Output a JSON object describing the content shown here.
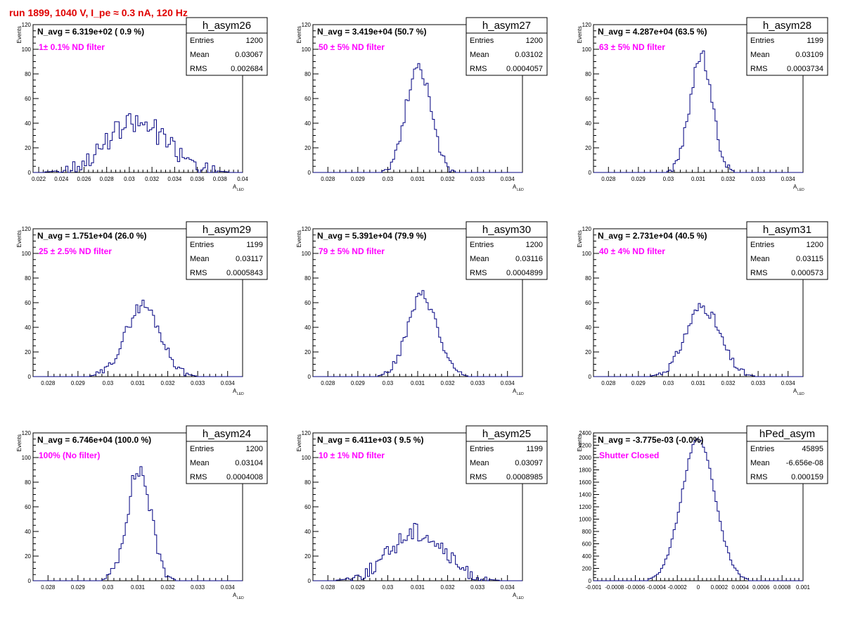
{
  "title": "run 1899,  1040 V, I_pe ≈ 0.3 nA, 120 Hz",
  "colors": {
    "title": "#e00000",
    "histogram": "#000080",
    "annotation": "#ff00ff",
    "axes": "#000000"
  },
  "chart_data": [
    {
      "type": "histogram",
      "name": "h_asym26",
      "navg": "N_avg = 6.319e+02 ( 0.9 %)",
      "filter": "1± 0.1% ND filter",
      "stats": [
        [
          "Entries",
          "1200"
        ],
        [
          "Mean",
          "0.03067"
        ],
        [
          "RMS",
          "0.002684"
        ]
      ],
      "xlabel": "A",
      "xlabel_sub": "LED",
      "ylabel": "Events",
      "xlim": [
        0.0215,
        0.04
      ],
      "ylim": [
        0,
        120
      ],
      "xticks": [
        "0.022",
        "0.024",
        "0.026",
        "0.028",
        "0.03",
        "0.032",
        "0.034",
        "0.036",
        "0.038",
        "0.04"
      ],
      "yticks": [
        "0",
        "20",
        "40",
        "60",
        "80",
        "100",
        "120"
      ],
      "mean": 0.03067,
      "sigma": 0.0027,
      "peak": 40,
      "noise": 10,
      "nbins": 90,
      "seed": 26
    },
    {
      "type": "histogram",
      "name": "h_asym27",
      "navg": "N_avg = 3.419e+04 (50.7 %)",
      "filter": "50 ± 5% ND filter",
      "stats": [
        [
          "Entries",
          "1200"
        ],
        [
          "Mean",
          "0.03102"
        ],
        [
          "RMS",
          "0.0004057"
        ]
      ],
      "xlabel": "A",
      "xlabel_sub": "LED",
      "ylabel": "Events",
      "xlim": [
        0.0275,
        0.0345
      ],
      "ylim": [
        0,
        120
      ],
      "xticks": [
        "0.028",
        "0.029",
        "0.03",
        "0.031",
        "0.032",
        "0.033",
        "0.034"
      ],
      "yticks": [
        "0",
        "20",
        "40",
        "60",
        "80",
        "100",
        "120"
      ],
      "mean": 0.03102,
      "sigma": 0.00041,
      "peak": 88,
      "noise": 6,
      "nbins": 100,
      "seed": 27
    },
    {
      "type": "histogram",
      "name": "h_asym28",
      "navg": "N_avg = 4.287e+04 (63.5 %)",
      "filter": "63 ± 5% ND filter",
      "stats": [
        [
          "Entries",
          "1199"
        ],
        [
          "Mean",
          "0.03109"
        ],
        [
          "RMS",
          "0.0003734"
        ]
      ],
      "xlabel": "A",
      "xlabel_sub": "LED",
      "ylabel": "Events",
      "xlim": [
        0.0275,
        0.0345
      ],
      "ylim": [
        0,
        120
      ],
      "xticks": [
        "0.028",
        "0.029",
        "0.03",
        "0.031",
        "0.032",
        "0.033",
        "0.034"
      ],
      "yticks": [
        "0",
        "20",
        "40",
        "60",
        "80",
        "100",
        "120"
      ],
      "mean": 0.03109,
      "sigma": 0.00037,
      "peak": 95,
      "noise": 6,
      "nbins": 100,
      "seed": 28
    },
    {
      "type": "histogram",
      "name": "h_asym29",
      "navg": "N_avg = 1.751e+04 (26.0 %)",
      "filter": "25 ± 2.5% ND filter",
      "stats": [
        [
          "Entries",
          "1199"
        ],
        [
          "Mean",
          "0.03117"
        ],
        [
          "RMS",
          "0.0005843"
        ]
      ],
      "xlabel": "A",
      "xlabel_sub": "LED",
      "ylabel": "Events",
      "xlim": [
        0.0275,
        0.0345
      ],
      "ylim": [
        0,
        120
      ],
      "xticks": [
        "0.028",
        "0.029",
        "0.03",
        "0.031",
        "0.032",
        "0.033",
        "0.034"
      ],
      "yticks": [
        "0",
        "20",
        "40",
        "60",
        "80",
        "100",
        "120"
      ],
      "mean": 0.03117,
      "sigma": 0.00058,
      "peak": 58,
      "noise": 5,
      "nbins": 100,
      "seed": 29
    },
    {
      "type": "histogram",
      "name": "h_asym30",
      "navg": "N_avg = 5.391e+04 (79.9 %)",
      "filter": "79 ± 5% ND filter",
      "stats": [
        [
          "Entries",
          "1200"
        ],
        [
          "Mean",
          "0.03116"
        ],
        [
          "RMS",
          "0.0004899"
        ]
      ],
      "xlabel": "A",
      "xlabel_sub": "LED",
      "ylabel": "Events",
      "xlim": [
        0.0275,
        0.0345
      ],
      "ylim": [
        0,
        120
      ],
      "xticks": [
        "0.028",
        "0.029",
        "0.03",
        "0.031",
        "0.032",
        "0.033",
        "0.034"
      ],
      "yticks": [
        "0",
        "20",
        "40",
        "60",
        "80",
        "100",
        "120"
      ],
      "mean": 0.03116,
      "sigma": 0.00049,
      "peak": 66,
      "noise": 5,
      "nbins": 100,
      "seed": 30
    },
    {
      "type": "histogram",
      "name": "h_asym31",
      "navg": "N_avg = 2.731e+04 (40.5 %)",
      "filter": "40 ± 4% ND filter",
      "stats": [
        [
          "Entries",
          "1200"
        ],
        [
          "Mean",
          "0.03115"
        ],
        [
          "RMS",
          "0.000573"
        ]
      ],
      "xlabel": "A",
      "xlabel_sub": "LED",
      "ylabel": "Events",
      "xlim": [
        0.0275,
        0.0345
      ],
      "ylim": [
        0,
        120
      ],
      "xticks": [
        "0.028",
        "0.029",
        "0.03",
        "0.031",
        "0.032",
        "0.033",
        "0.034"
      ],
      "yticks": [
        "0",
        "20",
        "40",
        "60",
        "80",
        "100",
        "120"
      ],
      "mean": 0.03115,
      "sigma": 0.00057,
      "peak": 57,
      "noise": 5,
      "nbins": 100,
      "seed": 31
    },
    {
      "type": "histogram",
      "name": "h_asym24",
      "navg": "N_avg = 6.746e+04 (100.0 %)",
      "filter": "100% (No filter)",
      "stats": [
        [
          "Entries",
          "1200"
        ],
        [
          "Mean",
          "0.03104"
        ],
        [
          "RMS",
          "0.0004008"
        ]
      ],
      "xlabel": "A",
      "xlabel_sub": "LED",
      "ylabel": "Events",
      "xlim": [
        0.0275,
        0.0345
      ],
      "ylim": [
        0,
        120
      ],
      "xticks": [
        "0.028",
        "0.029",
        "0.03",
        "0.031",
        "0.032",
        "0.033",
        "0.034"
      ],
      "yticks": [
        "0",
        "20",
        "40",
        "60",
        "80",
        "100",
        "120"
      ],
      "mean": 0.03104,
      "sigma": 0.0004,
      "peak": 90,
      "noise": 8,
      "nbins": 100,
      "seed": 24
    },
    {
      "type": "histogram",
      "name": "h_asym25",
      "navg": "N_avg = 6.411e+03 ( 9.5 %)",
      "filter": "10 ± 1% ND filter",
      "stats": [
        [
          "Entries",
          "1199"
        ],
        [
          "Mean",
          "0.03097"
        ],
        [
          "RMS",
          "0.0008985"
        ]
      ],
      "xlabel": "A",
      "xlabel_sub": "LED",
      "ylabel": "Events",
      "xlim": [
        0.0275,
        0.0345
      ],
      "ylim": [
        0,
        120
      ],
      "xticks": [
        "0.028",
        "0.029",
        "0.03",
        "0.031",
        "0.032",
        "0.033",
        "0.034"
      ],
      "yticks": [
        "0",
        "20",
        "40",
        "60",
        "80",
        "100",
        "120"
      ],
      "mean": 0.03097,
      "sigma": 0.0009,
      "peak": 40,
      "noise": 8,
      "nbins": 100,
      "seed": 25
    },
    {
      "type": "histogram",
      "name": "hPed_asym",
      "navg": "N_avg = -3.775e-03 (-0.0%)",
      "filter": "Shutter Closed",
      "stats": [
        [
          "Entries",
          "45895"
        ],
        [
          "Mean",
          "-6.656e-08"
        ],
        [
          "RMS",
          "0.000159"
        ]
      ],
      "xlabel": "",
      "xlabel_sub": "",
      "ylabel": "Events",
      "xlim": [
        -0.001,
        0.001
      ],
      "ylim": [
        0,
        2400
      ],
      "xticks": [
        "-0.001",
        "-0.0008",
        "-0.0006",
        "-0.0004",
        "-0.0002",
        "0",
        "0.0002",
        "0.0004",
        "0.0006",
        "0.0008",
        "0.001"
      ],
      "yticks": [
        "0",
        "200",
        "400",
        "600",
        "800",
        "1000",
        "1200",
        "1400",
        "1600",
        "1800",
        "2000",
        "2200",
        "2400"
      ],
      "mean": 0.0,
      "sigma": 0.000159,
      "peak": 2280,
      "noise": 40,
      "nbins": 100,
      "seed": 99
    }
  ]
}
